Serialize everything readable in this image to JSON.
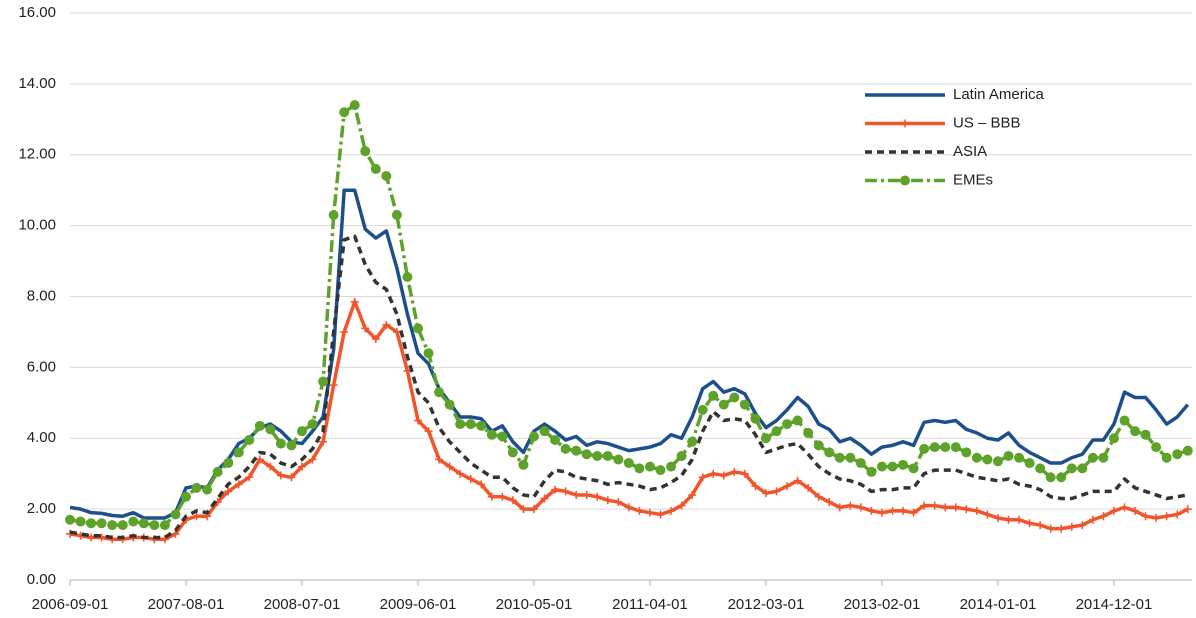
{
  "chart_data": {
    "type": "line",
    "categories": [
      "2006-09-01",
      null,
      null,
      null,
      null,
      null,
      null,
      null,
      null,
      null,
      null,
      "2007-08-01",
      null,
      null,
      null,
      null,
      null,
      null,
      null,
      null,
      null,
      null,
      "2008-07-01",
      null,
      null,
      null,
      null,
      null,
      null,
      null,
      null,
      null,
      null,
      "2009-06-01",
      null,
      null,
      null,
      null,
      null,
      null,
      null,
      null,
      null,
      null,
      "2010-05-01",
      null,
      null,
      null,
      null,
      null,
      null,
      null,
      null,
      null,
      null,
      "2011-04-01",
      null,
      null,
      null,
      null,
      null,
      null,
      null,
      null,
      null,
      null,
      "2012-03-01",
      null,
      null,
      null,
      null,
      null,
      null,
      null,
      null,
      null,
      null,
      "2013-02-01",
      null,
      null,
      null,
      null,
      null,
      null,
      null,
      null,
      null,
      null,
      "2014-01-01",
      null,
      null,
      null,
      null,
      null,
      null,
      null,
      null,
      null,
      null,
      "2014-12-01",
      null,
      null,
      null,
      null,
      null,
      null,
      null
    ],
    "series": [
      {
        "name": "Latin America",
        "color": "#1c4f8c",
        "line_style": "solid",
        "marker": "none",
        "values": [
          2.05,
          2.0,
          1.9,
          1.88,
          1.82,
          1.8,
          1.9,
          1.75,
          1.75,
          1.75,
          1.9,
          2.6,
          2.65,
          2.6,
          3.1,
          3.4,
          3.85,
          4.0,
          4.3,
          4.4,
          4.2,
          3.9,
          3.85,
          4.2,
          4.6,
          6.5,
          11.0,
          11.0,
          9.9,
          9.65,
          9.85,
          8.8,
          7.5,
          6.4,
          6.1,
          5.4,
          5.0,
          4.6,
          4.6,
          4.55,
          4.2,
          4.35,
          3.9,
          3.6,
          4.2,
          4.4,
          4.2,
          3.95,
          4.05,
          3.8,
          3.9,
          3.85,
          3.75,
          3.65,
          3.7,
          3.75,
          3.85,
          4.1,
          4.0,
          4.6,
          5.4,
          5.6,
          5.3,
          5.4,
          5.25,
          4.7,
          4.3,
          4.5,
          4.8,
          5.15,
          4.9,
          4.4,
          4.25,
          3.9,
          4.0,
          3.8,
          3.55,
          3.75,
          3.8,
          3.9,
          3.8,
          4.45,
          4.5,
          4.45,
          4.5,
          4.25,
          4.15,
          4.0,
          3.95,
          4.15,
          3.8,
          3.6,
          3.45,
          3.3,
          3.3,
          3.45,
          3.55,
          3.95,
          3.95,
          4.4,
          5.3,
          5.15,
          5.15,
          4.8,
          4.4,
          4.6,
          4.95
        ]
      },
      {
        "name": "US – BBB",
        "color": "#f2542b",
        "line_style": "solid",
        "marker": "plus",
        "values": [
          1.3,
          1.25,
          1.2,
          1.2,
          1.15,
          1.15,
          1.2,
          1.2,
          1.15,
          1.15,
          1.3,
          1.7,
          1.8,
          1.8,
          2.2,
          2.5,
          2.7,
          2.9,
          3.4,
          3.2,
          2.95,
          2.9,
          3.2,
          3.4,
          3.9,
          5.5,
          7.0,
          7.85,
          7.1,
          6.8,
          7.2,
          7.0,
          5.9,
          4.5,
          4.2,
          3.4,
          3.2,
          3.0,
          2.85,
          2.7,
          2.35,
          2.35,
          2.25,
          2.0,
          2.0,
          2.3,
          2.55,
          2.5,
          2.4,
          2.4,
          2.35,
          2.25,
          2.2,
          2.05,
          1.95,
          1.9,
          1.85,
          1.95,
          2.1,
          2.4,
          2.9,
          3.0,
          2.95,
          3.05,
          3.0,
          2.65,
          2.45,
          2.5,
          2.65,
          2.8,
          2.6,
          2.35,
          2.2,
          2.05,
          2.1,
          2.05,
          1.95,
          1.9,
          1.95,
          1.95,
          1.9,
          2.1,
          2.1,
          2.05,
          2.05,
          2.0,
          1.95,
          1.85,
          1.75,
          1.7,
          1.7,
          1.6,
          1.55,
          1.45,
          1.45,
          1.5,
          1.55,
          1.7,
          1.8,
          1.95,
          2.05,
          1.95,
          1.8,
          1.75,
          1.8,
          1.85,
          2.0
        ]
      },
      {
        "name": "ASIA",
        "color": "#333333",
        "line_style": "dashed",
        "marker": "none",
        "values": [
          1.35,
          1.3,
          1.25,
          1.25,
          1.2,
          1.2,
          1.25,
          1.2,
          1.2,
          1.2,
          1.4,
          1.8,
          1.95,
          1.9,
          2.3,
          2.7,
          2.9,
          3.2,
          3.6,
          3.55,
          3.3,
          3.2,
          3.4,
          3.7,
          4.2,
          7.0,
          9.6,
          9.7,
          8.9,
          8.4,
          8.2,
          7.5,
          6.3,
          5.3,
          5.0,
          4.3,
          3.9,
          3.6,
          3.3,
          3.1,
          2.9,
          2.9,
          2.6,
          2.4,
          2.35,
          2.8,
          3.1,
          3.05,
          2.9,
          2.85,
          2.8,
          2.7,
          2.75,
          2.7,
          2.65,
          2.55,
          2.6,
          2.75,
          2.95,
          3.4,
          4.2,
          4.75,
          4.5,
          4.55,
          4.5,
          4.1,
          3.6,
          3.7,
          3.8,
          3.85,
          3.55,
          3.2,
          3.0,
          2.85,
          2.8,
          2.7,
          2.5,
          2.55,
          2.55,
          2.6,
          2.6,
          3.0,
          3.1,
          3.1,
          3.1,
          3.0,
          2.9,
          2.85,
          2.8,
          2.85,
          2.7,
          2.65,
          2.55,
          2.35,
          2.3,
          2.3,
          2.4,
          2.5,
          2.5,
          2.5,
          2.85,
          2.6,
          2.5,
          2.4,
          2.3,
          2.35,
          2.4
        ]
      },
      {
        "name": "EMEs",
        "color": "#5ea22c",
        "line_style": "dashdot",
        "marker": "circle",
        "values": [
          1.7,
          1.65,
          1.6,
          1.6,
          1.55,
          1.55,
          1.65,
          1.6,
          1.55,
          1.55,
          1.85,
          2.35,
          2.6,
          2.55,
          3.05,
          3.3,
          3.6,
          3.95,
          4.35,
          4.25,
          3.85,
          3.8,
          4.2,
          4.4,
          5.6,
          10.3,
          13.2,
          13.4,
          12.1,
          11.6,
          11.4,
          10.3,
          8.55,
          7.1,
          6.4,
          5.3,
          4.95,
          4.4,
          4.4,
          4.35,
          4.1,
          4.05,
          3.6,
          3.25,
          4.05,
          4.2,
          3.95,
          3.7,
          3.65,
          3.55,
          3.5,
          3.5,
          3.4,
          3.3,
          3.15,
          3.2,
          3.1,
          3.2,
          3.5,
          3.9,
          4.8,
          5.2,
          4.95,
          5.15,
          4.95,
          4.55,
          4.0,
          4.2,
          4.4,
          4.5,
          4.15,
          3.8,
          3.6,
          3.45,
          3.45,
          3.3,
          3.05,
          3.2,
          3.2,
          3.25,
          3.15,
          3.7,
          3.75,
          3.75,
          3.75,
          3.6,
          3.45,
          3.4,
          3.35,
          3.5,
          3.45,
          3.3,
          3.15,
          2.9,
          2.9,
          3.15,
          3.15,
          3.45,
          3.45,
          4.0,
          4.5,
          4.2,
          4.1,
          3.75,
          3.45,
          3.55,
          3.65
        ]
      }
    ],
    "ylim": [
      0,
      16
    ],
    "yticks": [
      {
        "value": 0,
        "label": "0.00"
      },
      {
        "value": 2,
        "label": "2.00"
      },
      {
        "value": 4,
        "label": "4.00"
      },
      {
        "value": 6,
        "label": "6.00"
      },
      {
        "value": 8,
        "label": "8.00"
      },
      {
        "value": 10,
        "label": "10.00"
      },
      {
        "value": 12,
        "label": "12.00"
      },
      {
        "value": 14,
        "label": "14.00"
      },
      {
        "value": 16,
        "label": "16.00"
      }
    ],
    "grid": true,
    "legend": "upper right"
  }
}
